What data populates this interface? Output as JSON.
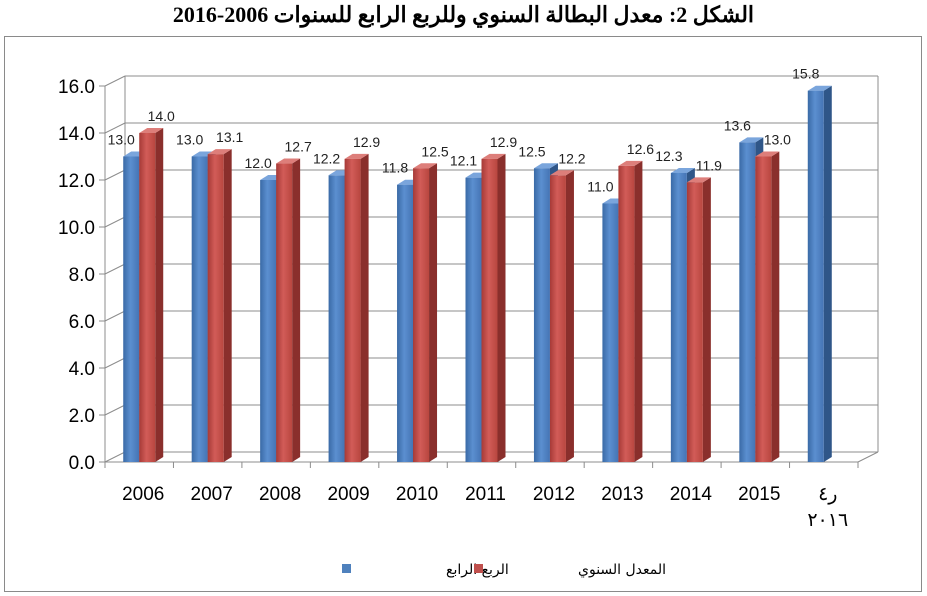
{
  "title": "الشكل 2: معدل البطالة السنوي وللربع الرابع للسنوات 2006-2016",
  "chart_data": {
    "type": "bar",
    "title": "الشكل 2: معدل البطالة السنوي وللربع الرابع للسنوات 2006-2016",
    "categories": [
      "2006",
      "2007",
      "2008",
      "2009",
      "2010",
      "2011",
      "2012",
      "2013",
      "2014",
      "2015",
      "ر٤\n٢٠١٦"
    ],
    "series": [
      {
        "name": "الربع الرابع",
        "color": "#4F81BD",
        "values": [
          13.0,
          13.0,
          12.0,
          12.2,
          11.8,
          12.1,
          12.5,
          11.0,
          12.3,
          13.6,
          15.8
        ]
      },
      {
        "name": "المعدل السنوي",
        "color": "#C0504D",
        "values": [
          14.0,
          13.1,
          12.7,
          12.9,
          12.5,
          12.9,
          12.2,
          12.6,
          11.9,
          13.0,
          null
        ]
      }
    ],
    "ylim": [
      0,
      16
    ],
    "yticks": [
      "0.0",
      "2.0",
      "4.0",
      "6.0",
      "8.0",
      "10.0",
      "12.0",
      "14.0",
      "16.0"
    ],
    "grid": true,
    "legend": "bottom",
    "xlabel": "",
    "ylabel": ""
  }
}
